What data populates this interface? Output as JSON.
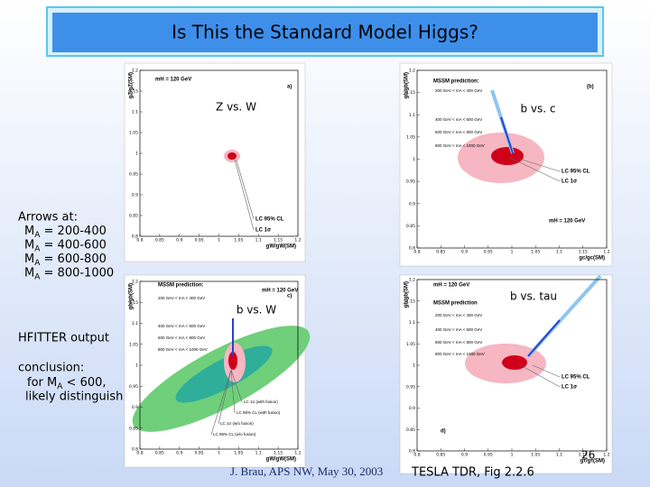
{
  "title": "Is This the Standard Model Higgs?",
  "sidebar": {
    "arrows_heading": "Arrows at:",
    "arrows": [
      {
        "main": "M",
        "sub": "A",
        "rest": " = 200-400"
      },
      {
        "main": "M",
        "sub": "A",
        "rest": " = 400-600"
      },
      {
        "main": "M",
        "sub": "A",
        "rest": " = 600-800"
      },
      {
        "main": "M",
        "sub": "A",
        "rest": " = 800-1000"
      }
    ],
    "hfitter": "HFITTER output",
    "conclusion_heading": "conclusion:",
    "conclusion_line": {
      "main": "for M",
      "sub": "A",
      "rest": " < 600,"
    },
    "conclusion_end": "likely distinguish"
  },
  "callouts": [
    "Z vs. W",
    "b vs. c",
    "b vs. W",
    "b vs. tau"
  ],
  "plots": [
    {
      "panel": "a)",
      "xlabel": "gW/gW(SM)",
      "ylabel": "gZ/gZ(SM)",
      "texts": [
        "mH = 120 GeV",
        "LC 95% CL",
        "LC 1σ"
      ],
      "xticks": [
        "0.8",
        "0.85",
        "0.9",
        "0.95",
        "1",
        "1.05",
        "1.1",
        "1.15",
        "1.2"
      ],
      "yticks": [
        "1.2",
        "1.15",
        "1.1",
        "1.05",
        "1",
        "0.95",
        "0.9",
        "0.85",
        "0.8"
      ]
    },
    {
      "panel": "(b)",
      "xlabel": "gc/gc(SM)",
      "ylabel": "gb/gb(SM)",
      "texts": [
        "MSSM prediction:",
        "200 GeV < mA < 400 GeV",
        "400 GeV < mA < 600 GeV",
        "600 GeV < mA < 800 GeV",
        "800 GeV < mA < 1000 GeV",
        "LC 95% CL",
        "LC 1σ",
        "mH = 120 GeV"
      ],
      "xticks": [
        "0.8",
        "0.85",
        "0.9",
        "0.95",
        "1",
        "1.05",
        "1.1",
        "1.15",
        "1.2"
      ],
      "yticks": [
        "1.2",
        "1.15",
        "1.1",
        "1.05",
        "1",
        "0.95",
        "0.9",
        "0.85",
        "0.8"
      ]
    },
    {
      "panel": "c)",
      "xlabel": "gW/gW(SM)",
      "ylabel": "gb/gb(SM)",
      "texts": [
        "MSSM prediction:",
        "mH = 120 GeV",
        "200 GeV < mA < 400 GeV",
        "400 GeV < mA < 600 GeV",
        "600 GeV < mA < 800 GeV",
        "800 GeV < mA < 1000 GeV",
        "LC 1σ (with fusion)",
        "LC 95% CL (with fusion)",
        "LC 1σ (w/o fusion)",
        "LC 95% CL (w/o fusion)"
      ],
      "xticks": [
        "0.8",
        "0.85",
        "0.9",
        "0.95",
        "1",
        "1.05",
        "1.1",
        "1.15",
        "1.2"
      ],
      "yticks": [
        "1.2",
        "1.15",
        "1.1",
        "1.05",
        "1",
        "0.95",
        "0.9",
        "0.85",
        "0.8"
      ]
    },
    {
      "panel": "d)",
      "xlabel": "gτ/gτ(SM)",
      "ylabel": "gb/gb(SM)",
      "texts": [
        "mH = 120 GeV",
        "MSSM prediction",
        "200 GeV < mA < 400 GeV",
        "400 GeV < mA < 600 GeV",
        "600 GeV < mA < 800 GeV",
        "800 GeV < mA < 1000 GeV",
        "LC 95% CL",
        "LC 1σ"
      ],
      "xticks": [
        "0.8",
        "0.85",
        "0.9",
        "0.95",
        "1",
        "1.05",
        "1.1",
        "1.15",
        "1.2"
      ],
      "yticks": [
        "1.2",
        "1.15",
        "1.1",
        "1.05",
        "1",
        "0.95",
        "0.9",
        "0.85",
        "0.8"
      ]
    }
  ],
  "footer": {
    "author": "J. Brau, APS NW, May 30, 2003",
    "source": "TESLA TDR, Fig 2.2.6",
    "page": "26"
  }
}
